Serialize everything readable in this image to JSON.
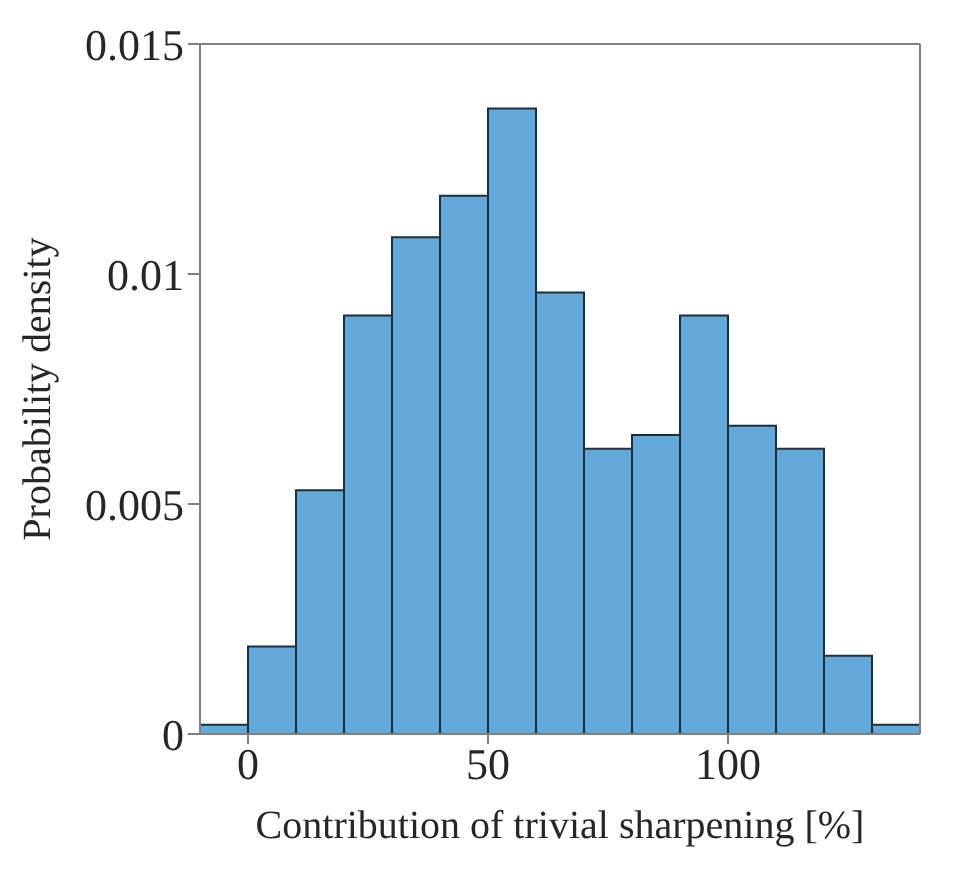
{
  "chart_data": {
    "type": "histogram",
    "xlabel": "Contribution of trivial sharpening [%]",
    "ylabel": "Probability density",
    "bins": [
      -10,
      0,
      10,
      20,
      30,
      40,
      50,
      60,
      70,
      80,
      90,
      100,
      110,
      120,
      130,
      140
    ],
    "values": [
      0.0002,
      0.0019,
      0.0053,
      0.0091,
      0.0108,
      0.0117,
      0.0136,
      0.0096,
      0.0062,
      0.0065,
      0.0091,
      0.0067,
      0.0062,
      0.0017,
      0.0002
    ],
    "color": "#62a8d8",
    "xlim": [
      -10,
      140
    ],
    "xticks": [
      0,
      50,
      100
    ],
    "ylim": [
      0,
      0.015
    ],
    "yticks": [
      0,
      0.005,
      0.01,
      0.015
    ],
    "grid": false
  }
}
